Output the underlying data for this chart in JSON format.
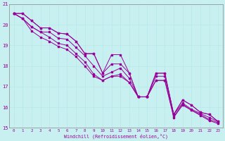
{
  "xlabel": "Windchill (Refroidissement éolien,°C)",
  "background_color": "#c8f0f0",
  "line_color": "#990099",
  "grid_color": "#b8e8e8",
  "xlim": [
    -0.5,
    23.5
  ],
  "ylim": [
    15,
    21
  ],
  "yticks": [
    15,
    16,
    17,
    18,
    19,
    20,
    21
  ],
  "xticks": [
    0,
    1,
    2,
    3,
    4,
    5,
    6,
    7,
    8,
    9,
    10,
    11,
    12,
    13,
    14,
    15,
    16,
    17,
    18,
    19,
    20,
    21,
    22,
    23
  ],
  "series": [
    [
      20.55,
      20.55,
      20.2,
      19.85,
      19.85,
      19.6,
      19.55,
      19.2,
      18.6,
      18.6,
      17.65,
      18.55,
      18.55,
      17.65,
      16.5,
      16.5,
      17.65,
      17.65,
      15.65,
      16.35,
      16.1,
      15.75,
      15.65,
      15.3
    ],
    [
      20.55,
      20.55,
      20.2,
      19.85,
      19.85,
      19.6,
      19.55,
      19.2,
      18.6,
      18.6,
      17.65,
      18.1,
      18.1,
      17.65,
      16.5,
      16.5,
      17.65,
      17.65,
      15.65,
      16.35,
      16.1,
      15.75,
      15.65,
      15.3
    ],
    [
      20.55,
      20.3,
      19.9,
      19.65,
      19.65,
      19.35,
      19.3,
      18.9,
      18.5,
      18.0,
      17.5,
      17.7,
      17.9,
      17.4,
      16.5,
      16.5,
      17.5,
      17.5,
      15.65,
      16.2,
      15.9,
      15.7,
      15.5,
      15.3
    ],
    [
      20.55,
      20.3,
      19.9,
      19.65,
      19.4,
      19.1,
      19.0,
      18.6,
      18.2,
      17.6,
      17.3,
      17.5,
      17.6,
      17.2,
      16.5,
      16.5,
      17.3,
      17.3,
      15.55,
      16.15,
      15.85,
      15.65,
      15.4,
      15.25
    ],
    [
      20.55,
      20.3,
      19.7,
      19.4,
      19.2,
      18.95,
      18.8,
      18.45,
      18.0,
      17.5,
      17.3,
      17.5,
      17.5,
      17.2,
      16.5,
      16.5,
      17.3,
      17.3,
      15.5,
      16.1,
      15.85,
      15.6,
      15.35,
      15.2
    ]
  ]
}
